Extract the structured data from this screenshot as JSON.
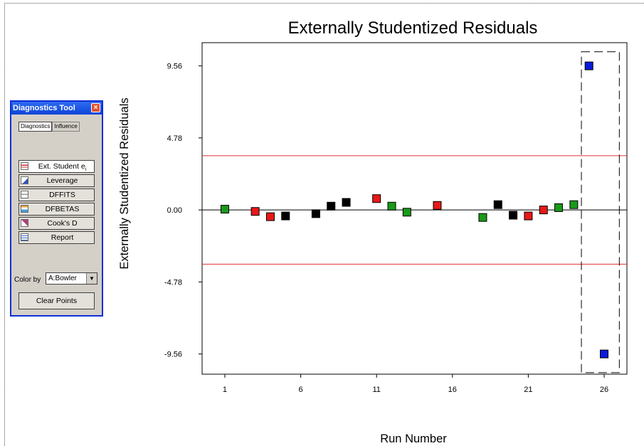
{
  "tool": {
    "title": "Diagnostics Tool",
    "close_glyph": "×",
    "tabs": [
      {
        "label": "Diagnostics",
        "active": true
      },
      {
        "label": "Influence",
        "active": false
      }
    ],
    "buttons": [
      {
        "label": "Ext. Student ei",
        "icon": "ext-student-icon",
        "pressed": true
      },
      {
        "label": "Leverage",
        "icon": "leverage-icon",
        "pressed": false
      },
      {
        "label": "DFFITS",
        "icon": "dffits-icon",
        "pressed": false
      },
      {
        "label": "DFBETAS",
        "icon": "dfbetas-icon",
        "pressed": false
      },
      {
        "label": "Cook's D",
        "icon": "cooks-d-icon",
        "pressed": false
      },
      {
        "label": "Report",
        "icon": "report-icon",
        "pressed": false
      }
    ],
    "color_by_label": "Color by",
    "color_by_value": "A:Bowler",
    "clear_points_label": "Clear Points"
  },
  "chart_data": {
    "type": "scatter",
    "title": "Externally Studentized Residuals",
    "xlabel": "Run Number",
    "ylabel": "Externally Studentized Residuals",
    "x_ticks": [
      1,
      6,
      11,
      16,
      21,
      26
    ],
    "x_tick_labels": [
      "1",
      "6",
      "11",
      "16",
      "21",
      "26"
    ],
    "y_ticks": [
      9.56,
      4.78,
      0.0,
      -4.78,
      -9.56
    ],
    "y_tick_labels": [
      "9.56",
      "4.78",
      "0.00",
      "-4.78",
      "-9.56"
    ],
    "xlim": [
      -0.5,
      27.5
    ],
    "ylim": [
      -10.9,
      11.1
    ],
    "reference_lines": [
      {
        "y": 3.6,
        "color": "#e03030"
      },
      {
        "y": -3.6,
        "color": "#e03030"
      },
      {
        "y": 0.0,
        "color": "#000000"
      }
    ],
    "colors": {
      "green": "#1a9a1a",
      "red": "#e81818",
      "black": "#000000",
      "blue": "#0a1adc"
    },
    "points": [
      {
        "x": 1,
        "y": 0.05,
        "color": "green"
      },
      {
        "x": 3,
        "y": -0.1,
        "color": "red"
      },
      {
        "x": 4,
        "y": -0.45,
        "color": "red"
      },
      {
        "x": 5,
        "y": -0.4,
        "color": "black"
      },
      {
        "x": 7,
        "y": -0.25,
        "color": "black"
      },
      {
        "x": 8,
        "y": 0.25,
        "color": "black"
      },
      {
        "x": 9,
        "y": 0.5,
        "color": "black"
      },
      {
        "x": 11,
        "y": 0.75,
        "color": "red"
      },
      {
        "x": 12,
        "y": 0.25,
        "color": "green"
      },
      {
        "x": 13,
        "y": -0.15,
        "color": "green"
      },
      {
        "x": 15,
        "y": 0.3,
        "color": "red"
      },
      {
        "x": 18,
        "y": -0.5,
        "color": "green"
      },
      {
        "x": 19,
        "y": 0.35,
        "color": "black"
      },
      {
        "x": 20,
        "y": -0.35,
        "color": "black"
      },
      {
        "x": 21,
        "y": -0.4,
        "color": "red"
      },
      {
        "x": 22,
        "y": 0.0,
        "color": "red"
      },
      {
        "x": 23,
        "y": 0.15,
        "color": "green"
      },
      {
        "x": 24,
        "y": 0.35,
        "color": "green"
      },
      {
        "x": 25,
        "y": 9.56,
        "color": "blue"
      },
      {
        "x": 26,
        "y": -9.56,
        "color": "blue"
      }
    ],
    "selection_box": {
      "x0": 24.5,
      "x1": 27.0,
      "y0": -10.8,
      "y1": 10.5
    },
    "grid": false
  }
}
